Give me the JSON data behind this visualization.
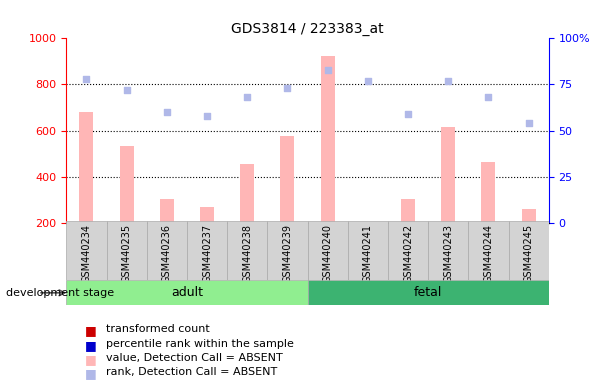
{
  "title": "GDS3814 / 223383_at",
  "samples": [
    "GSM440234",
    "GSM440235",
    "GSM440236",
    "GSM440237",
    "GSM440238",
    "GSM440239",
    "GSM440240",
    "GSM440241",
    "GSM440242",
    "GSM440243",
    "GSM440244",
    "GSM440245"
  ],
  "bar_values": [
    680,
    535,
    305,
    270,
    455,
    578,
    925,
    200,
    305,
    615,
    463,
    260
  ],
  "rank_values": [
    78,
    72,
    60,
    58,
    68,
    73,
    83,
    77,
    59,
    77,
    68,
    54
  ],
  "groups": [
    {
      "label": "adult",
      "start": 0,
      "end": 6,
      "color": "#90ee90"
    },
    {
      "label": "fetal",
      "start": 6,
      "end": 12,
      "color": "#3cb371"
    }
  ],
  "bar_color_absent": "#ffb6b6",
  "rank_color_absent": "#b0b8e8",
  "ylim_left": [
    200,
    1000
  ],
  "ylim_right": [
    0,
    100
  ],
  "yticks_left": [
    200,
    400,
    600,
    800,
    1000
  ],
  "yticks_right": [
    0,
    25,
    50,
    75,
    100
  ],
  "ytick_right_labels": [
    "0",
    "25",
    "50",
    "75",
    "100%"
  ],
  "legend_items": [
    {
      "label": "transformed count",
      "color": "#cc0000"
    },
    {
      "label": "percentile rank within the sample",
      "color": "#0000cc"
    },
    {
      "label": "value, Detection Call = ABSENT",
      "color": "#ffb6b6"
    },
    {
      "label": "rank, Detection Call = ABSENT",
      "color": "#b0b8e8"
    }
  ],
  "group_label": "development stage",
  "bar_width": 0.35,
  "grid_yticks": [
    400,
    600,
    800
  ]
}
